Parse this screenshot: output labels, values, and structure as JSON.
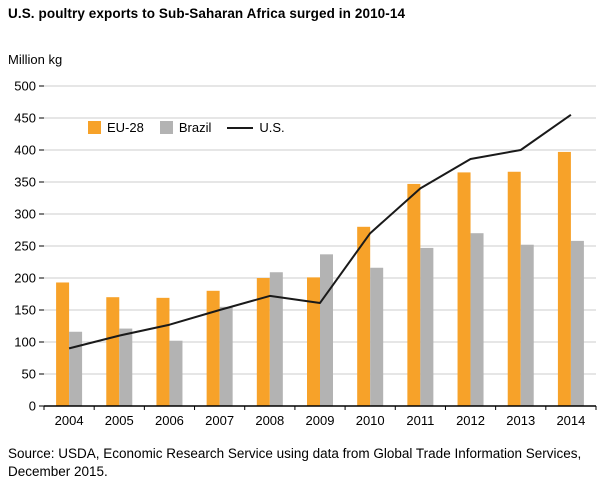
{
  "chart_data": {
    "type": "bar",
    "title": "U.S. poultry exports to Sub-Saharan Africa surged in 2010-14",
    "unit_label": "Million kg",
    "categories": [
      "2004",
      "2005",
      "2006",
      "2007",
      "2008",
      "2009",
      "2010",
      "2011",
      "2012",
      "2013",
      "2014"
    ],
    "series": [
      {
        "name": "EU-28",
        "type": "bar",
        "color": "#F7A229",
        "values": [
          193,
          170,
          169,
          180,
          200,
          201,
          280,
          347,
          365,
          366,
          397
        ]
      },
      {
        "name": "Brazil",
        "type": "bar",
        "color": "#B3B3B3",
        "values": [
          116,
          121,
          102,
          155,
          209,
          237,
          216,
          247,
          270,
          252,
          258
        ]
      },
      {
        "name": "U.S.",
        "type": "line",
        "color": "#1A1A1A",
        "values": [
          90,
          110,
          127,
          150,
          172,
          161,
          270,
          340,
          386,
          400,
          455
        ]
      }
    ],
    "ylim": [
      0,
      500
    ],
    "yticks": [
      0,
      50,
      100,
      150,
      200,
      250,
      300,
      350,
      400,
      450,
      500
    ],
    "grid": true,
    "grid_color": "#CCCCCC",
    "legend_position": "top-left-inside"
  },
  "source": {
    "text": "Source: USDA, Economic Research Service using data from Global Trade Information Services, December 2015."
  }
}
